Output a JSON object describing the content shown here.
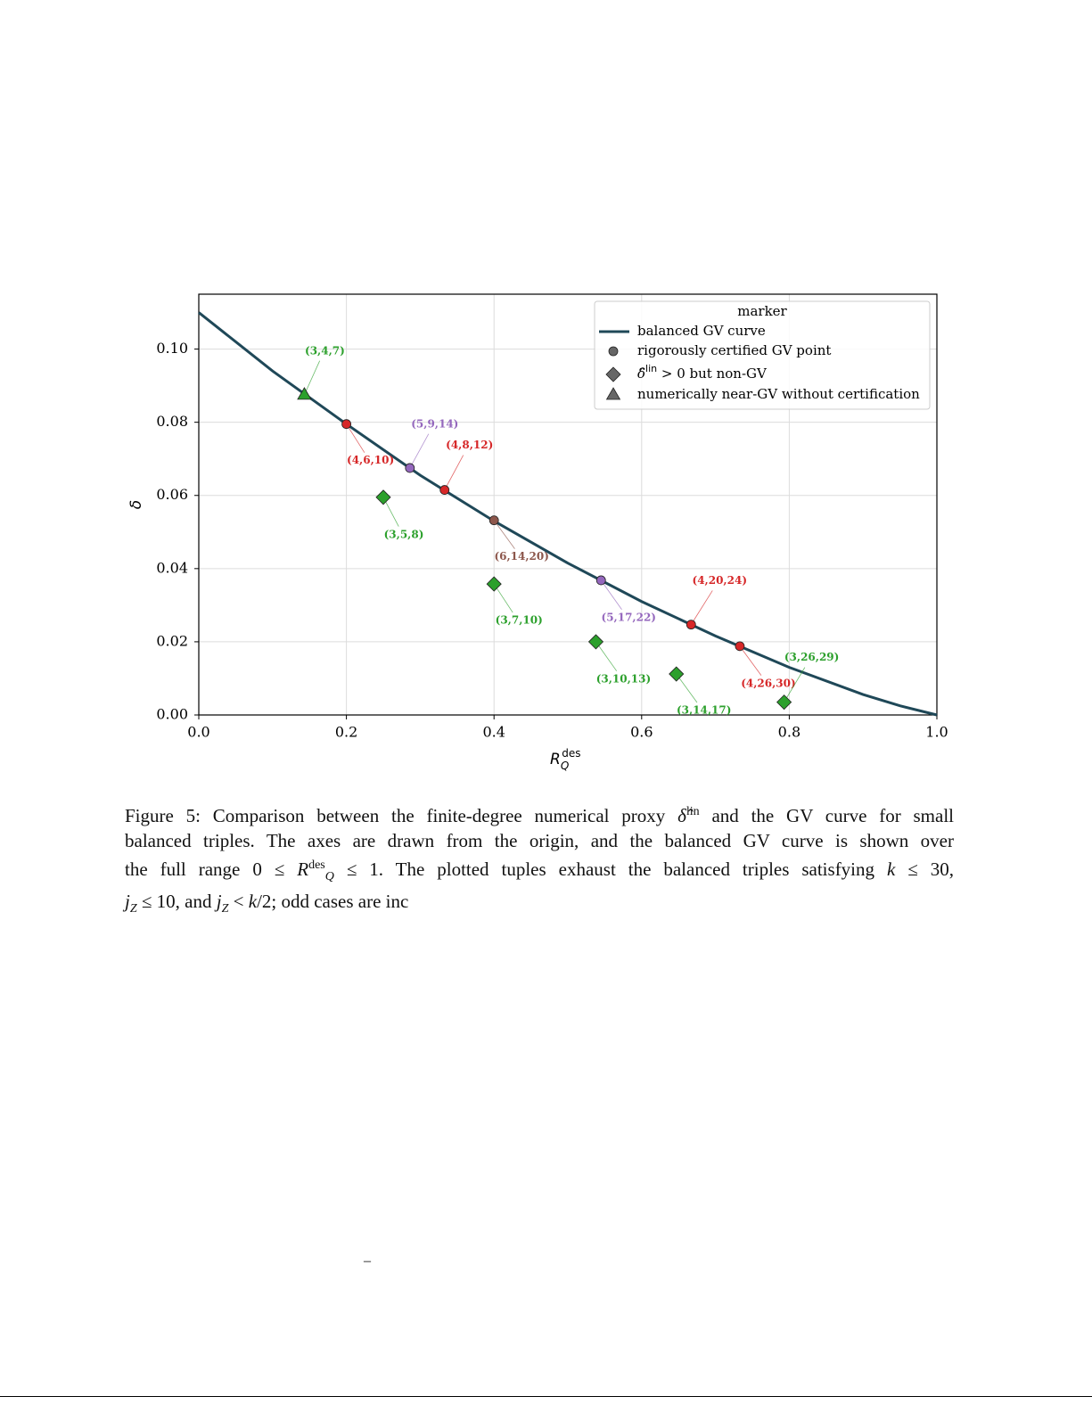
{
  "chart_data": {
    "type": "line",
    "xlim": [
      0,
      1
    ],
    "ylim": [
      0,
      0.115
    ],
    "xticks": [
      {
        "value": 0,
        "label": "0.0"
      },
      0.2,
      0.4,
      0.6,
      0.8,
      {
        "value": 1,
        "label": "1.0"
      }
    ],
    "yticks": [
      {
        "value": 0,
        "label": "0.00"
      },
      0.02,
      0.04,
      0.06,
      0.08,
      {
        "value": 0.1,
        "label": "0.10"
      }
    ],
    "grid": true,
    "x_label": {
      "base": "R",
      "sub": "Q",
      "sup": "des"
    },
    "y_label": "δ",
    "legend": {
      "title": "marker",
      "position": "upper right"
    },
    "series": [
      {
        "name": "balanced GV curve",
        "kind": "line",
        "color": "#1f4858",
        "x": [
          0,
          0.1,
          0.2,
          0.3,
          0.4,
          0.5,
          0.6,
          0.7,
          0.8,
          0.9,
          0.95,
          1
        ],
        "values": [
          0.11,
          0.094,
          0.0795,
          0.0655,
          0.053,
          0.0415,
          0.031,
          0.0216,
          0.013,
          0.0056,
          0.0025,
          0
        ]
      },
      {
        "name": "rigorously certified GV point",
        "kind": "circle",
        "color": "#666666",
        "points": [
          {
            "label": "(4,6,10)",
            "x": 0.2,
            "y": 0.0795,
            "color": "#d62728"
          },
          {
            "label": "(5,9,14)",
            "x": 0.286,
            "y": 0.0675,
            "color": "#9467bd"
          },
          {
            "label": "(4,8,12)",
            "x": 0.333,
            "y": 0.0615,
            "color": "#d62728"
          },
          {
            "label": "(6,14,20)",
            "x": 0.4,
            "y": 0.0532,
            "color": "#8c564b"
          },
          {
            "label": "(5,17,22)",
            "x": 0.545,
            "y": 0.0368,
            "color": "#9467bd"
          },
          {
            "label": "(4,20,24)",
            "x": 0.667,
            "y": 0.0247,
            "color": "#d62728"
          },
          {
            "label": "(4,26,30)",
            "x": 0.733,
            "y": 0.0188,
            "color": "#d62728"
          }
        ]
      },
      {
        "name": {
          "symbol": "δ̂",
          "sup": "lin",
          "rest": " > 0 but non-GV"
        },
        "kind": "diamond",
        "color": "#666666",
        "points": [
          {
            "label": "(3,5,8)",
            "x": 0.25,
            "y": 0.0595,
            "color": "#2ca02c"
          },
          {
            "label": "(3,7,10)",
            "x": 0.4,
            "y": 0.0358,
            "color": "#2ca02c"
          },
          {
            "label": "(3,10,13)",
            "x": 0.538,
            "y": 0.02,
            "color": "#2ca02c"
          },
          {
            "label": "(3,14,17)",
            "x": 0.647,
            "y": 0.0112,
            "color": "#2ca02c"
          },
          {
            "label": "(3,26,29)",
            "x": 0.793,
            "y": 0.0035,
            "color": "#2ca02c"
          }
        ]
      },
      {
        "name": "numerically near-GV without certification",
        "kind": "triangle",
        "color": "#666666",
        "points": [
          {
            "label": "(3,4,7)",
            "x": 0.143,
            "y": 0.0875,
            "color": "#2ca02c"
          }
        ]
      }
    ]
  },
  "caption": [
    [
      {
        "t": "Figure 5: Comparison between the finite-degree numerical proxy "
      },
      {
        "t": "δ̂",
        "style": "i"
      },
      {
        "t": "lin",
        "style": "sup"
      },
      {
        "t": " and the GV curve for small"
      }
    ],
    [
      {
        "t": "balanced triples. The axes are drawn from the origin, and the balanced GV curve is shown over"
      }
    ],
    [
      {
        "t": "the full range 0 ≤ "
      },
      {
        "t": "R",
        "style": "i"
      },
      {
        "t": "des",
        "style": "sup"
      },
      {
        "t": "Q",
        "style": "sub"
      },
      {
        "t": " ≤ 1. The plotted tuples exhaust the balanced triples satisfying "
      },
      {
        "t": "k",
        "style": "i"
      },
      {
        "t": " ≤ 30,"
      }
    ],
    [
      {
        "t": "j",
        "style": "i"
      },
      {
        "t": "Z",
        "style": "sub"
      },
      {
        "t": " ≤ 10, and "
      },
      {
        "t": "j",
        "style": "i"
      },
      {
        "t": "Z",
        "style": "sub"
      },
      {
        "t": " < "
      },
      {
        "t": "k",
        "style": "i"
      },
      {
        "t": "/2; odd cases are inc"
      }
    ]
  ],
  "footer_mark": "–"
}
